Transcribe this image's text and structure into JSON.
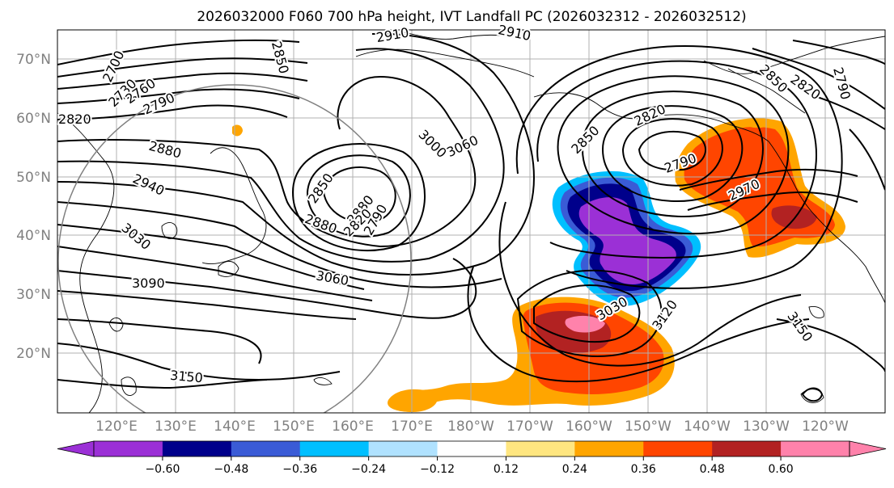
{
  "title": "2026032000 F060 700 hPa height, IVT Landfall PC (2026032312 - 2026032512)",
  "lat_labels": [
    "70°N",
    "60°N",
    "50°N",
    "40°N",
    "30°N",
    "20°N"
  ],
  "lon_labels": [
    "120°E",
    "130°E",
    "140°E",
    "150°E",
    "160°E",
    "170°E",
    "180°W",
    "170°W",
    "160°W",
    "150°W",
    "140°W",
    "130°W",
    "120°W"
  ],
  "contour_labels": [
    "2700",
    "2730",
    "2760",
    "2790",
    "2820",
    "2850",
    "2910",
    "2880",
    "2880",
    "2940",
    "3030",
    "3090",
    "3060",
    "3000",
    "2850",
    "2880",
    "2820",
    "2790",
    "3060",
    "2910",
    "2850",
    "2820",
    "2790",
    "2970",
    "2850",
    "2790",
    "2820",
    "3030",
    "3120",
    "3150",
    "3150"
  ],
  "colorbar": {
    "tick_labels": [
      "−0.60",
      "−0.48",
      "−0.36",
      "−0.24",
      "−0.12",
      "0.12",
      "0.24",
      "0.36",
      "0.48",
      "0.60"
    ],
    "levels": [
      -0.72,
      -0.6,
      -0.48,
      -0.36,
      -0.24,
      -0.12,
      0.12,
      0.24,
      0.36,
      0.48,
      0.6,
      0.72
    ],
    "colors": [
      "#9b30d6",
      "#00008b",
      "#3a5bd6",
      "#00bfff",
      "#b0e2ff",
      "#ffffff",
      "#ffe680",
      "#ffa500",
      "#ff4500",
      "#b22222",
      "#ff82ab"
    ]
  },
  "chart_data": {
    "type": "map",
    "projection": "Plate Carree, centered near 180°",
    "lat_range": [
      "10°N",
      "75°N"
    ],
    "lon_range": [
      "110°E",
      "110°W"
    ],
    "grid": true,
    "contour_field": "700 hPa height (m)",
    "shaded_field": "IVT Landfall PC",
    "features": [
      "height lows near 47°N 160°E and 53°N 150°W",
      "negative IVT PC anomaly near 40°N 155°W",
      "positive IVT PC anomaly near 45°N 128°W",
      "positive IVT PC anomaly near 22°N 160°W"
    ]
  }
}
